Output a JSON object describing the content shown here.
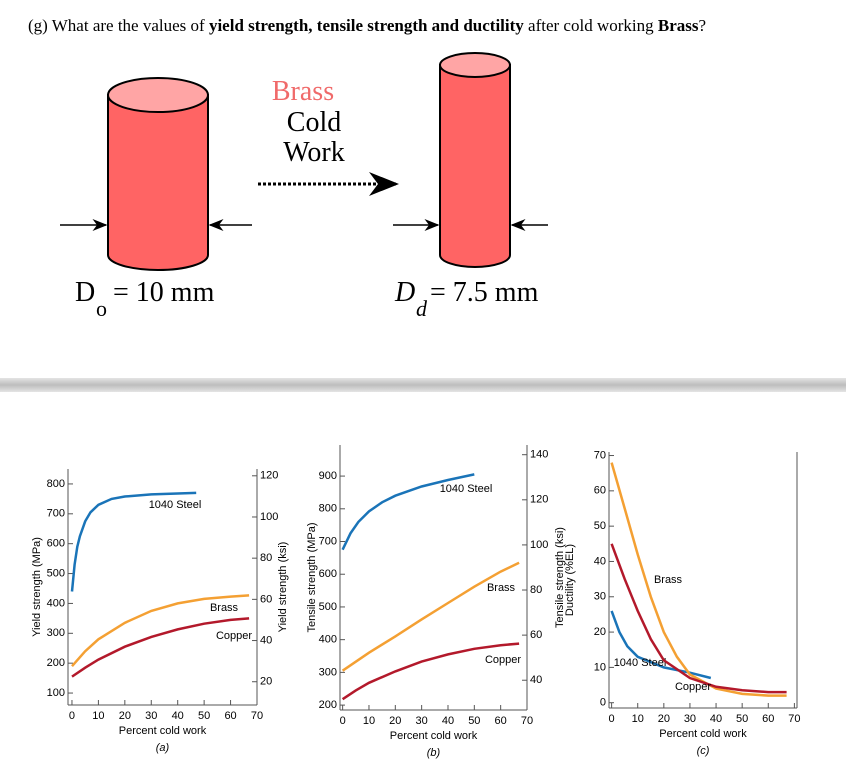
{
  "question": [
    "(g) What are the values of ",
    "yield strength, tensile strength and ductility",
    " after cold working ",
    "Brass",
    "?"
  ],
  "diagram": {
    "material": "Brass",
    "process_line1": "Cold",
    "process_line2": "Work",
    "before": {
      "symbol": "D",
      "subscript": "o",
      "value": "= 10 mm"
    },
    "after": {
      "symbol": "D",
      "subscript": "d",
      "value": "= 7.5 mm"
    }
  },
  "chart_data": [
    {
      "type": "line",
      "caption": "(a)",
      "x_label": "Percent cold work",
      "y_label": "Yield strength (MPa)",
      "y2_label": "Yield strength (ksi)",
      "xlim": [
        -1.5,
        70
      ],
      "xticks": [
        0,
        10,
        20,
        30,
        40,
        50,
        60,
        70
      ],
      "ylim": [
        60,
        850
      ],
      "yticks": [
        100,
        200,
        300,
        400,
        500,
        600,
        700,
        800
      ],
      "y2lim": [
        8.7,
        123.3
      ],
      "y2ticks": [
        20,
        40,
        60,
        80,
        100,
        120
      ],
      "series": [
        {
          "name": "1040 Steel",
          "color": "#1a74b8",
          "x": [
            0,
            1,
            2,
            3,
            5,
            7,
            10,
            15,
            20,
            30,
            40,
            47
          ],
          "values": [
            440,
            530,
            590,
            625,
            675,
            705,
            730,
            750,
            758,
            765,
            768,
            770
          ]
        },
        {
          "name": "Brass",
          "color": "#f4a033",
          "x": [
            0,
            5,
            10,
            20,
            30,
            40,
            50,
            60,
            67
          ],
          "values": [
            190,
            240,
            280,
            335,
            375,
            400,
            415,
            423,
            427
          ]
        },
        {
          "name": "Copper",
          "color": "#b3192b",
          "x": [
            0,
            5,
            10,
            20,
            30,
            40,
            50,
            60,
            67
          ],
          "values": [
            155,
            185,
            212,
            255,
            288,
            313,
            332,
            345,
            350
          ]
        }
      ]
    },
    {
      "type": "line",
      "caption": "(b)",
      "x_label": "Percent cold work",
      "y_label": "Tensile strength (MPa)",
      "y2_label": "Tensile strength (ksi)",
      "xlim": [
        -1,
        70
      ],
      "xticks": [
        0,
        10,
        20,
        30,
        40,
        50,
        60,
        70
      ],
      "ylim": [
        185,
        995
      ],
      "yticks": [
        200,
        300,
        400,
        500,
        600,
        700,
        800,
        900
      ],
      "y2lim": [
        26.8,
        144.3
      ],
      "y2ticks": [
        40,
        60,
        80,
        100,
        120,
        140
      ],
      "series": [
        {
          "name": "1040 Steel",
          "color": "#1a74b8",
          "x": [
            0,
            3,
            6,
            10,
            15,
            20,
            30,
            40,
            50
          ],
          "values": [
            675,
            725,
            760,
            792,
            820,
            840,
            868,
            888,
            905
          ]
        },
        {
          "name": "Brass",
          "color": "#f4a033",
          "x": [
            0,
            10,
            20,
            30,
            40,
            50,
            60,
            67
          ],
          "values": [
            305,
            360,
            410,
            462,
            512,
            562,
            608,
            635
          ]
        },
        {
          "name": "Copper",
          "color": "#b3192b",
          "x": [
            0,
            5,
            10,
            20,
            30,
            40,
            50,
            60,
            67
          ],
          "values": [
            218,
            245,
            268,
            303,
            333,
            355,
            372,
            383,
            388
          ]
        }
      ]
    },
    {
      "type": "line",
      "caption": "(c)",
      "x_label": "Percent cold work",
      "y_label": "Ductility (%EL)",
      "xlim": [
        -1,
        71
      ],
      "xticks": [
        0,
        10,
        20,
        30,
        40,
        50,
        60,
        70
      ],
      "ylim": [
        -1.5,
        71
      ],
      "yticks": [
        0,
        10,
        20,
        30,
        40,
        50,
        60,
        70
      ],
      "series": [
        {
          "name": "1040 Steel",
          "color": "#1a74b8",
          "x": [
            0,
            3,
            6,
            10,
            15,
            20,
            30,
            38
          ],
          "values": [
            26,
            20,
            16,
            13,
            11.5,
            10,
            8.5,
            7
          ]
        },
        {
          "name": "Brass",
          "color": "#f4a033",
          "x": [
            0,
            5,
            10,
            15,
            20,
            25,
            30,
            40,
            50,
            60,
            67
          ],
          "values": [
            68,
            55,
            42,
            30,
            20,
            13,
            8,
            4,
            2.5,
            2,
            2
          ]
        },
        {
          "name": "Copper",
          "color": "#b3192b",
          "x": [
            0,
            5,
            10,
            15,
            20,
            30,
            40,
            50,
            60,
            67
          ],
          "values": [
            45,
            35,
            26,
            18,
            12,
            7,
            4.5,
            3.5,
            3,
            3
          ]
        }
      ]
    }
  ]
}
